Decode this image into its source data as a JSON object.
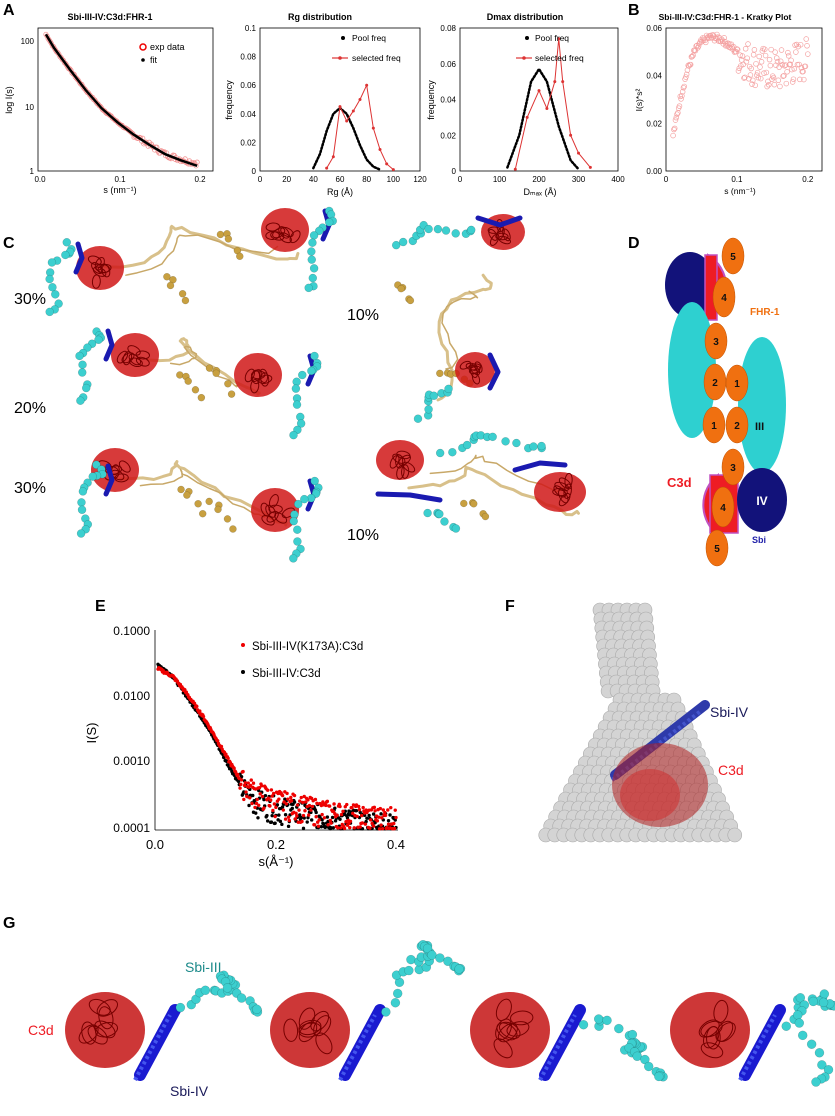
{
  "panels": {
    "A": "A",
    "B": "B",
    "C": "C",
    "D": "D",
    "E": "E",
    "F": "F",
    "G": "G"
  },
  "panelA1": {
    "title": "Sbi-III-IV:C3d:FHR-1",
    "ylabel": "log I(s)",
    "xlabel": "s (nm⁻¹)",
    "legend_exp": "exp data",
    "legend_fit": "fit",
    "xticks": [
      "0.0",
      "0.1",
      "0.2"
    ],
    "yticks": [
      "100",
      "10",
      "1"
    ]
  },
  "panelA2": {
    "title": "Rg      distribution",
    "ylabel": "frequency",
    "xlabel": "Rɡ (Å)",
    "legend_pool": "Pool freq",
    "legend_sel": "selected freq",
    "xticks": [
      "0",
      "20",
      "40",
      "60",
      "80",
      "100",
      "120"
    ],
    "yticks": [
      "0",
      "0.02",
      "0.04",
      "0.06",
      "0.08",
      "0.1"
    ]
  },
  "panelA3": {
    "title": "Dmax      distribution",
    "ylabel": "frequency",
    "xlabel": "Dₘₐₓ (Å)",
    "legend_pool": "Pool freq",
    "legend_sel": "selected freq",
    "xticks": [
      "0",
      "100",
      "200",
      "300",
      "400"
    ],
    "yticks": [
      "0",
      "0.02",
      "0.04",
      "0.06",
      "0.08"
    ]
  },
  "panelB": {
    "title": "Sbi-III-IV:C3d:FHR-1 - Kratky Plot",
    "ylabel": "I(s)*s²",
    "xlabel": "s (nm⁻¹)",
    "xticks": [
      "0",
      "0.1",
      "0.2"
    ],
    "yticks": [
      "0.00",
      "0.02",
      "0.04",
      "0.06"
    ]
  },
  "panelC": {
    "pct_left": [
      "30%",
      "20%",
      "30%"
    ],
    "pct_right": [
      "10%",
      "10%"
    ]
  },
  "panelD": {
    "fhr1": "FHR-1",
    "c3d": "C3d",
    "sbi": "Sbi",
    "dom3": "III",
    "dom4": "IV",
    "scr": [
      "5",
      "4",
      "3",
      "2",
      "1",
      "1",
      "2",
      "3",
      "4",
      "5"
    ]
  },
  "panelE": {
    "ylabel": "I(S)",
    "xlabel": "s(Å⁻¹)",
    "legend_red": "Sbi-III-IV(K173A):C3d",
    "legend_black": "Sbi-III-IV:C3d",
    "yticks": [
      "0.1000",
      "0.0100",
      "0.0010",
      "0.0001"
    ],
    "xticks": [
      "0.0",
      "0.2",
      "0.4"
    ]
  },
  "panelF": {
    "sbi": "Sbi-IV",
    "c3d": "C3d"
  },
  "panelG": {
    "sbi3": "Sbi-III",
    "c3d": "C3d",
    "sbi4": "Sbi-IV"
  },
  "chart_data": [
    {
      "type": "line",
      "title": "Sbi-III-IV:C3d:FHR-1",
      "xlabel": "s (nm⁻¹)",
      "ylabel": "log I(s)",
      "xlim": [
        0,
        0.22
      ],
      "ylim": [
        1,
        150
      ],
      "yscale": "log",
      "series": [
        {
          "name": "exp data",
          "x": [
            0.01,
            0.02,
            0.04,
            0.06,
            0.08,
            0.1,
            0.12,
            0.14,
            0.16,
            0.18,
            0.2
          ],
          "y": [
            120,
            75,
            35,
            17,
            9,
            5.5,
            3.6,
            2.5,
            1.8,
            1.5,
            1.3
          ]
        },
        {
          "name": "fit",
          "x": [
            0.01,
            0.02,
            0.04,
            0.06,
            0.08,
            0.1,
            0.12,
            0.14,
            0.16,
            0.18,
            0.2
          ],
          "y": [
            120,
            75,
            35,
            17,
            9,
            5.5,
            3.6,
            2.5,
            1.8,
            1.45,
            1.2
          ]
        }
      ]
    },
    {
      "type": "line",
      "title": "Rg distribution",
      "xlabel": "Rɡ (Å)",
      "ylabel": "frequency",
      "xlim": [
        0,
        120
      ],
      "ylim": [
        0,
        0.1
      ],
      "series": [
        {
          "name": "Pool freq",
          "x": [
            40,
            45,
            50,
            55,
            60,
            65,
            70,
            75,
            80,
            85,
            90
          ],
          "y": [
            0.002,
            0.012,
            0.028,
            0.04,
            0.044,
            0.04,
            0.03,
            0.018,
            0.008,
            0.003,
            0.001
          ]
        },
        {
          "name": "selected freq",
          "x": [
            50,
            55,
            60,
            65,
            70,
            75,
            80,
            85,
            90,
            95,
            100
          ],
          "y": [
            0.002,
            0.01,
            0.045,
            0.035,
            0.042,
            0.05,
            0.06,
            0.03,
            0.015,
            0.005,
            0.001
          ]
        }
      ]
    },
    {
      "type": "line",
      "title": "Dmax distribution",
      "xlabel": "Dₘₐₓ (Å)",
      "ylabel": "frequency",
      "xlim": [
        0,
        400
      ],
      "ylim": [
        0,
        0.08
      ],
      "series": [
        {
          "name": "Pool freq",
          "x": [
            120,
            150,
            180,
            200,
            220,
            250,
            280,
            300
          ],
          "y": [
            0.002,
            0.02,
            0.05,
            0.057,
            0.05,
            0.025,
            0.006,
            0.001
          ]
        },
        {
          "name": "selected freq",
          "x": [
            140,
            170,
            200,
            220,
            240,
            250,
            260,
            280,
            300,
            330
          ],
          "y": [
            0.001,
            0.03,
            0.045,
            0.035,
            0.05,
            0.074,
            0.05,
            0.02,
            0.01,
            0.002
          ]
        }
      ]
    },
    {
      "type": "scatter",
      "title": "Sbi-III-IV:C3d:FHR-1 - Kratky Plot",
      "xlabel": "s (nm⁻¹)",
      "ylabel": "I(s)*s²",
      "xlim": [
        0,
        0.22
      ],
      "ylim": [
        0,
        0.06
      ],
      "series": [
        {
          "name": "",
          "x": [
            0.01,
            0.02,
            0.03,
            0.04,
            0.05,
            0.06,
            0.07,
            0.08,
            0.1,
            0.12,
            0.14,
            0.16,
            0.18,
            0.2
          ],
          "y": [
            0.015,
            0.03,
            0.042,
            0.05,
            0.054,
            0.056,
            0.056,
            0.055,
            0.05,
            0.045,
            0.043,
            0.042,
            0.045,
            0.047
          ]
        }
      ]
    },
    {
      "type": "scatter",
      "xlabel": "s(Å⁻¹)",
      "ylabel": "I(S)",
      "xlim": [
        0,
        0.4
      ],
      "ylim": [
        0.0001,
        0.1
      ],
      "yscale": "log",
      "series": [
        {
          "name": "Sbi-III-IV(K173A):C3d",
          "x": [
            0.01,
            0.03,
            0.05,
            0.08,
            0.1,
            0.12,
            0.14,
            0.16,
            0.2,
            0.25,
            0.3,
            0.35,
            0.4
          ],
          "y": [
            0.025,
            0.02,
            0.012,
            0.005,
            0.0025,
            0.0012,
            0.0006,
            0.0004,
            0.00028,
            0.00022,
            0.00018,
            0.00016,
            0.00015
          ]
        },
        {
          "name": "Sbi-III-IV:C3d",
          "x": [
            0.01,
            0.03,
            0.05,
            0.08,
            0.1,
            0.12,
            0.14,
            0.16,
            0.2,
            0.25,
            0.3,
            0.35,
            0.4
          ],
          "y": [
            0.028,
            0.02,
            0.011,
            0.0045,
            0.0022,
            0.001,
            0.0005,
            0.0003,
            0.00022,
            0.00018,
            0.00015,
            0.00013,
            0.00012
          ]
        }
      ]
    }
  ]
}
